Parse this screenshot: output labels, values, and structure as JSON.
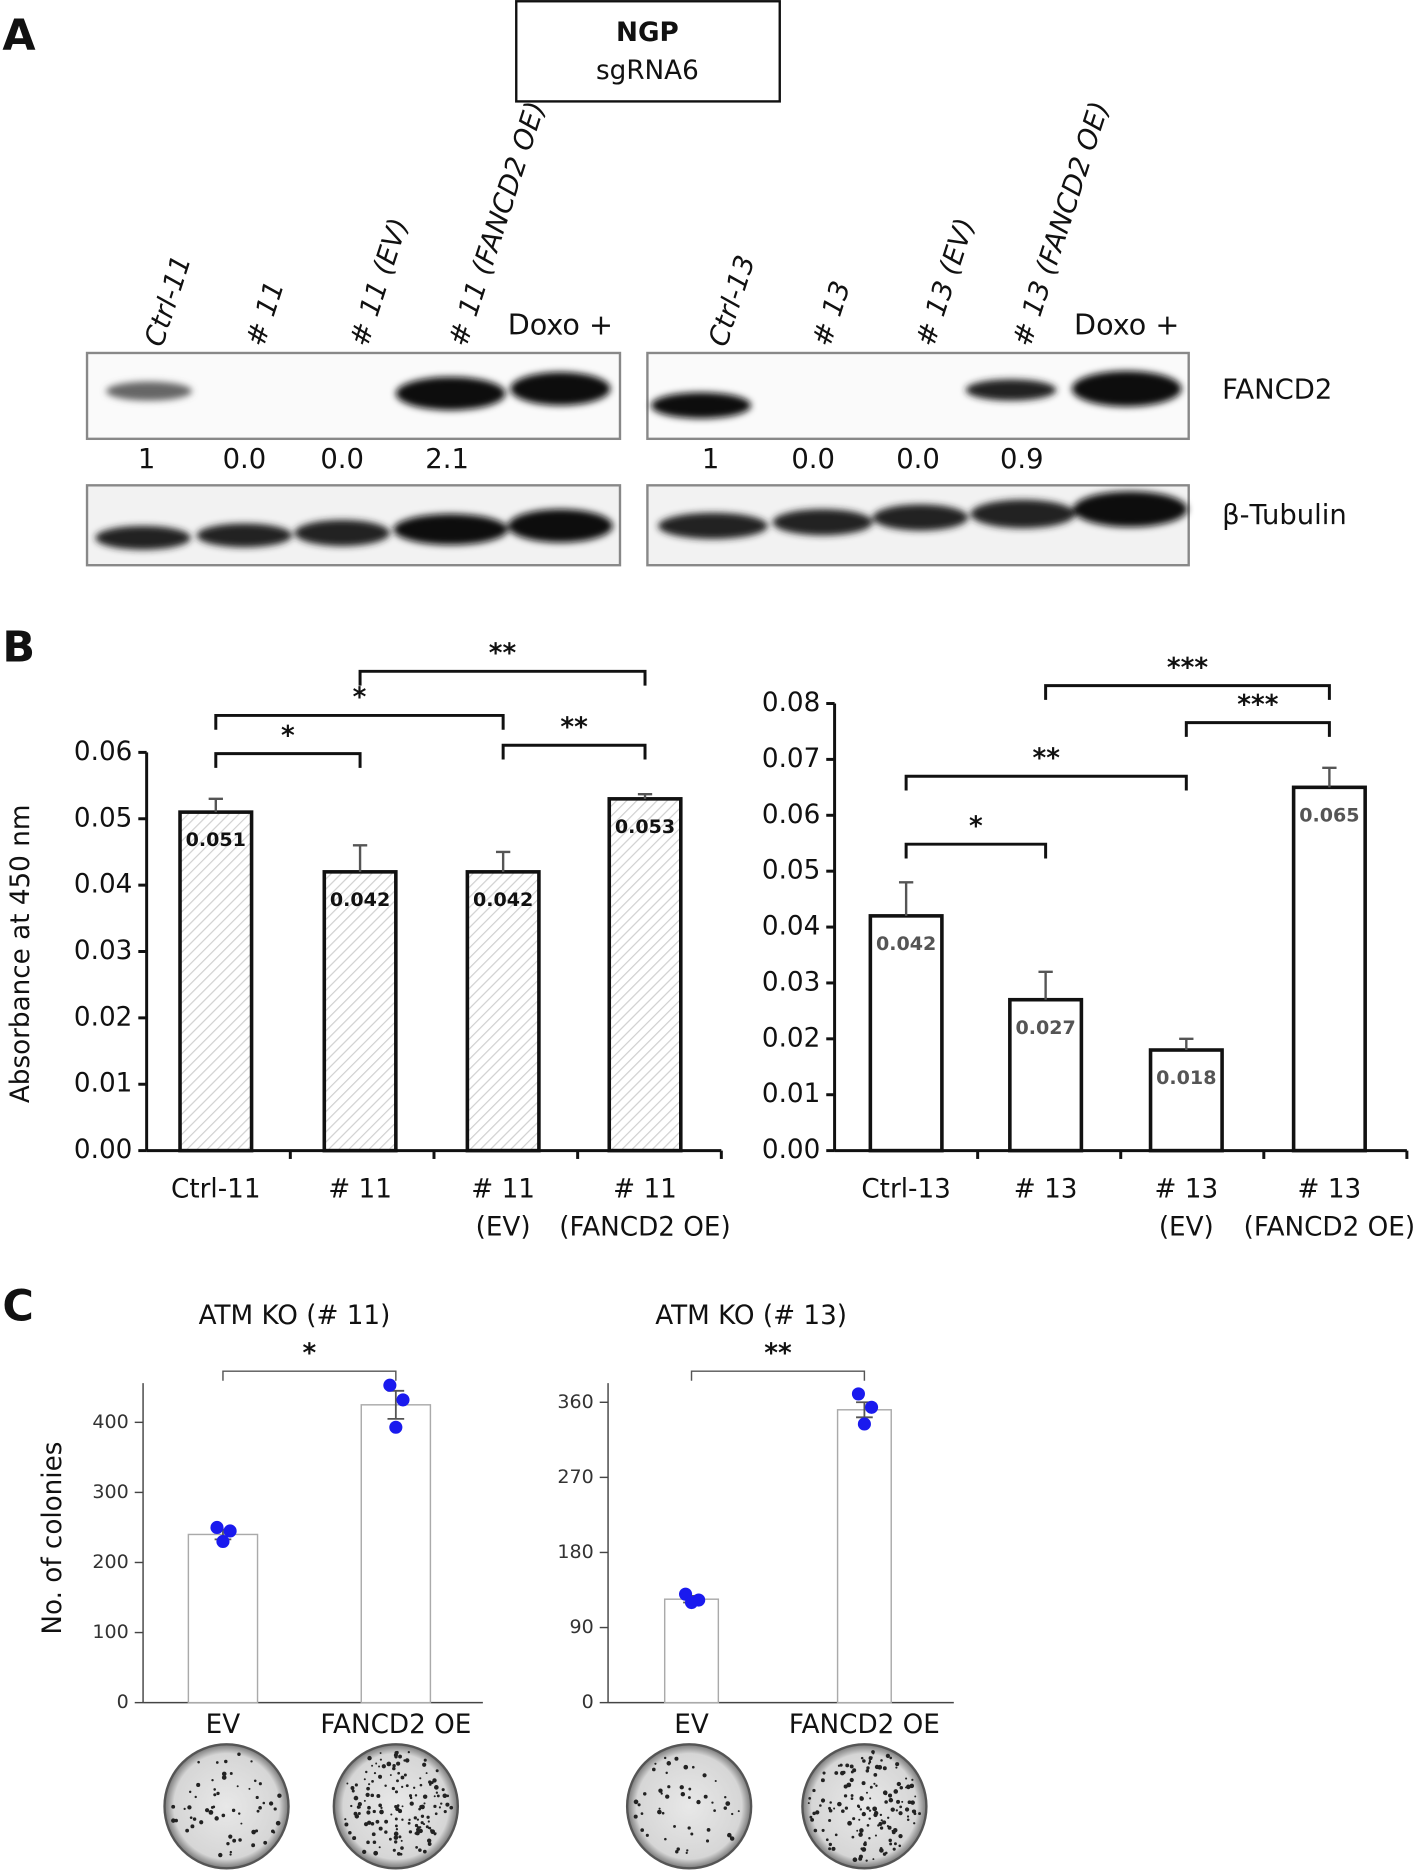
{
  "panel_labels": [
    "A",
    "B",
    "C"
  ],
  "blot": {
    "title": "NGP",
    "subtitle": "sgRNA6",
    "rows": [
      "FANCD2",
      "β-Tubulin"
    ],
    "left": {
      "lanes": [
        "Ctrl-11",
        "# 11",
        "# 11 (EV)",
        "# 11 (FANCD2 OE)"
      ],
      "extra_lane": "Doxo +",
      "quant": [
        "1",
        "0.0",
        "0.0",
        "2.1"
      ]
    },
    "right": {
      "lanes": [
        "Ctrl-13",
        "# 13",
        "# 13 (EV)",
        "# 13 (FANCD2 OE)"
      ],
      "extra_lane": "Doxo +",
      "quant": [
        "1",
        "0.0",
        "0.0",
        "0.9"
      ]
    }
  },
  "chart_data": [
    {
      "type": "bar",
      "ylabel": "Absorbance at 450 nm",
      "hatched": true,
      "color": "#ffffff",
      "label_color": "#111111",
      "categories": [
        [
          "Ctrl-11"
        ],
        [
          "# 11"
        ],
        [
          "# 11",
          "(EV)"
        ],
        [
          "# 11",
          "(FANCD2 OE)"
        ]
      ],
      "values": [
        0.051,
        0.042,
        0.042,
        0.053
      ],
      "errors": [
        0.002,
        0.004,
        0.003,
        0.0007
      ],
      "ylim": [
        0,
        0.06
      ],
      "yticks": [
        {
          "value": 0,
          "label": "0.00"
        },
        {
          "value": 0.01,
          "label": "0.01"
        },
        {
          "value": 0.02,
          "label": "0.02"
        },
        {
          "value": 0.03,
          "label": "0.03"
        },
        {
          "value": 0.04,
          "label": "0.04"
        },
        {
          "value": 0.05,
          "label": "0.05"
        },
        {
          "value": 0.06,
          "label": "0.06"
        }
      ],
      "annotations": [
        "*",
        "*",
        "**",
        "**"
      ]
    },
    {
      "type": "bar",
      "hatched": false,
      "color": "#ffffff",
      "label_color": "#555555",
      "categories": [
        [
          "Ctrl-13"
        ],
        [
          "# 13"
        ],
        [
          "# 13",
          "(EV)"
        ],
        [
          "# 13",
          "(FANCD2 OE)"
        ]
      ],
      "values": [
        0.042,
        0.027,
        0.018,
        0.065
      ],
      "errors": [
        0.006,
        0.005,
        0.002,
        0.0035
      ],
      "ylim": [
        0,
        0.08
      ],
      "yticks": [
        {
          "value": 0,
          "label": "0.00"
        },
        {
          "value": 0.01,
          "label": "0.01"
        },
        {
          "value": 0.02,
          "label": "0.02"
        },
        {
          "value": 0.03,
          "label": "0.03"
        },
        {
          "value": 0.04,
          "label": "0.04"
        },
        {
          "value": 0.05,
          "label": "0.05"
        },
        {
          "value": 0.06,
          "label": "0.06"
        },
        {
          "value": 0.07,
          "label": "0.07"
        },
        {
          "value": 0.08,
          "label": "0.08"
        }
      ],
      "annotations": [
        "*",
        "**",
        "***",
        "***"
      ]
    },
    {
      "type": "dotbar",
      "title": "ATM KO (# 11)",
      "ylabel": "No. of colonies",
      "color": "#ffffff",
      "point_color": "#1a1aee",
      "categories": [
        [
          "EV"
        ],
        [
          "FANCD2 OE"
        ]
      ],
      "values": [
        240,
        425
      ],
      "errors": [
        7,
        20
      ],
      "points": [
        [
          250,
          245,
          230
        ],
        [
          453,
          432,
          393
        ]
      ],
      "ylim": [
        0,
        456
      ],
      "yticks": [
        0,
        100,
        200,
        300,
        400
      ],
      "annotations": [
        "*"
      ]
    },
    {
      "type": "dotbar",
      "title": "ATM KO (# 13)",
      "color": "#ffffff",
      "point_color": "#1a1aee",
      "categories": [
        [
          "EV"
        ],
        [
          "FANCD2 OE"
        ]
      ],
      "values": [
        124,
        351
      ],
      "errors": [
        4,
        9
      ],
      "points": [
        [
          130,
          123,
          120
        ],
        [
          370,
          354,
          334
        ]
      ],
      "ylim": [
        0,
        383
      ],
      "yticks": [
        0,
        90,
        180,
        270,
        360
      ],
      "annotations": [
        "**"
      ]
    }
  ]
}
